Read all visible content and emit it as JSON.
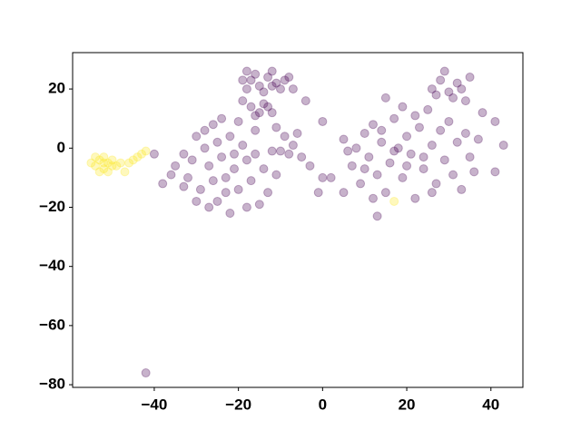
{
  "chart_data": {
    "type": "scatter",
    "xlim": [
      -59.4,
      47.6
    ],
    "ylim": [
      -80.9,
      32.3
    ],
    "xticks": [
      {
        "value": -40,
        "label": "−40"
      },
      {
        "value": -20,
        "label": "−20"
      },
      0,
      20,
      40
    ],
    "yticks": [
      20,
      0,
      {
        "value": -20,
        "label": "−20"
      },
      {
        "value": -40,
        "label": "−40"
      },
      {
        "value": -60,
        "label": "−60"
      },
      {
        "value": -80,
        "label": "−80"
      }
    ],
    "alpha": 0.3,
    "series": [
      {
        "color": "#440154",
        "x": [
          -17,
          -15,
          -13,
          -11,
          -9,
          -14,
          -12,
          -16,
          -10,
          -8,
          -18,
          -12,
          -19,
          -7,
          -17,
          -15,
          -13,
          -16,
          -14,
          -12,
          -19,
          -35,
          -33,
          -32,
          -30,
          -29,
          -28,
          -27,
          -26,
          -25,
          -24,
          -23,
          -22,
          -22,
          -21,
          -20,
          -19,
          -18,
          -17,
          -16,
          -15,
          -14,
          -13,
          -12,
          -11,
          -24,
          -30,
          -27,
          -20,
          -33,
          -36,
          -18,
          -26,
          -31,
          -23,
          -16,
          -28,
          -21,
          -25,
          -9,
          -7,
          -8,
          -6,
          -10,
          -5,
          -3,
          -11,
          5,
          7,
          8,
          9,
          10,
          11,
          12,
          13,
          14,
          15,
          16,
          17,
          18,
          19,
          20,
          21,
          22,
          23,
          24,
          25,
          26,
          27,
          28,
          29,
          30,
          31,
          32,
          33,
          34,
          35,
          36,
          37,
          38,
          19,
          15,
          22,
          12,
          24,
          17,
          20,
          26,
          10,
          6,
          14,
          26,
          28,
          30,
          32,
          29,
          31,
          27,
          33,
          35,
          34,
          -42,
          0,
          43,
          41,
          13,
          -1,
          2,
          5,
          -4,
          -40,
          -38,
          0,
          -18,
          41
        ],
        "values": [
          23,
          21,
          24,
          22,
          23,
          19,
          21,
          25,
          20,
          24,
          20,
          26,
          23,
          20,
          14,
          12,
          14,
          11,
          15,
          12,
          16,
          -6,
          -2,
          -10,
          4,
          -14,
          0,
          -6,
          8,
          -18,
          -3,
          -10,
          4,
          -22,
          -7,
          -14,
          1,
          -4,
          -11,
          6,
          -19,
          -7,
          -15,
          -1,
          -9,
          10,
          -18,
          -20,
          9,
          -13,
          -9,
          -20,
          -11,
          -4,
          -15,
          -2,
          6,
          -2,
          2,
          4,
          1,
          -2,
          5,
          -1,
          -3,
          -6,
          7,
          3,
          -6,
          0,
          -12,
          5,
          -3,
          8,
          -9,
          2,
          -15,
          -5,
          10,
          0,
          -10,
          4,
          -2,
          -17,
          7,
          -7,
          13,
          1,
          -12,
          6,
          -4,
          9,
          -9,
          2,
          -14,
          5,
          -3,
          -8,
          3,
          12,
          14,
          17,
          11,
          -17,
          -3,
          -1,
          -6,
          -15,
          -7,
          -1,
          6,
          20,
          23,
          19,
          22,
          26,
          17,
          18,
          20,
          24,
          16,
          -76,
          9,
          1,
          9,
          -23,
          -15,
          -10,
          -15,
          16,
          -2,
          -12,
          -10,
          26,
          -8
        ]
      },
      {
        "color": "#fde725",
        "x": [
          -54,
          -53,
          -52,
          -51,
          -50,
          -52,
          -53,
          -55,
          -51,
          -50,
          -49,
          -54,
          -52,
          -48,
          -46,
          -45,
          -47,
          -44,
          -43,
          -42,
          17
        ],
        "values": [
          -6,
          -4,
          -7,
          -5,
          -6,
          -3,
          -8,
          -5,
          -8,
          -4,
          -6,
          -3,
          -5,
          -5,
          -5,
          -4,
          -8,
          -3,
          -2,
          -1,
          -18
        ]
      }
    ]
  }
}
